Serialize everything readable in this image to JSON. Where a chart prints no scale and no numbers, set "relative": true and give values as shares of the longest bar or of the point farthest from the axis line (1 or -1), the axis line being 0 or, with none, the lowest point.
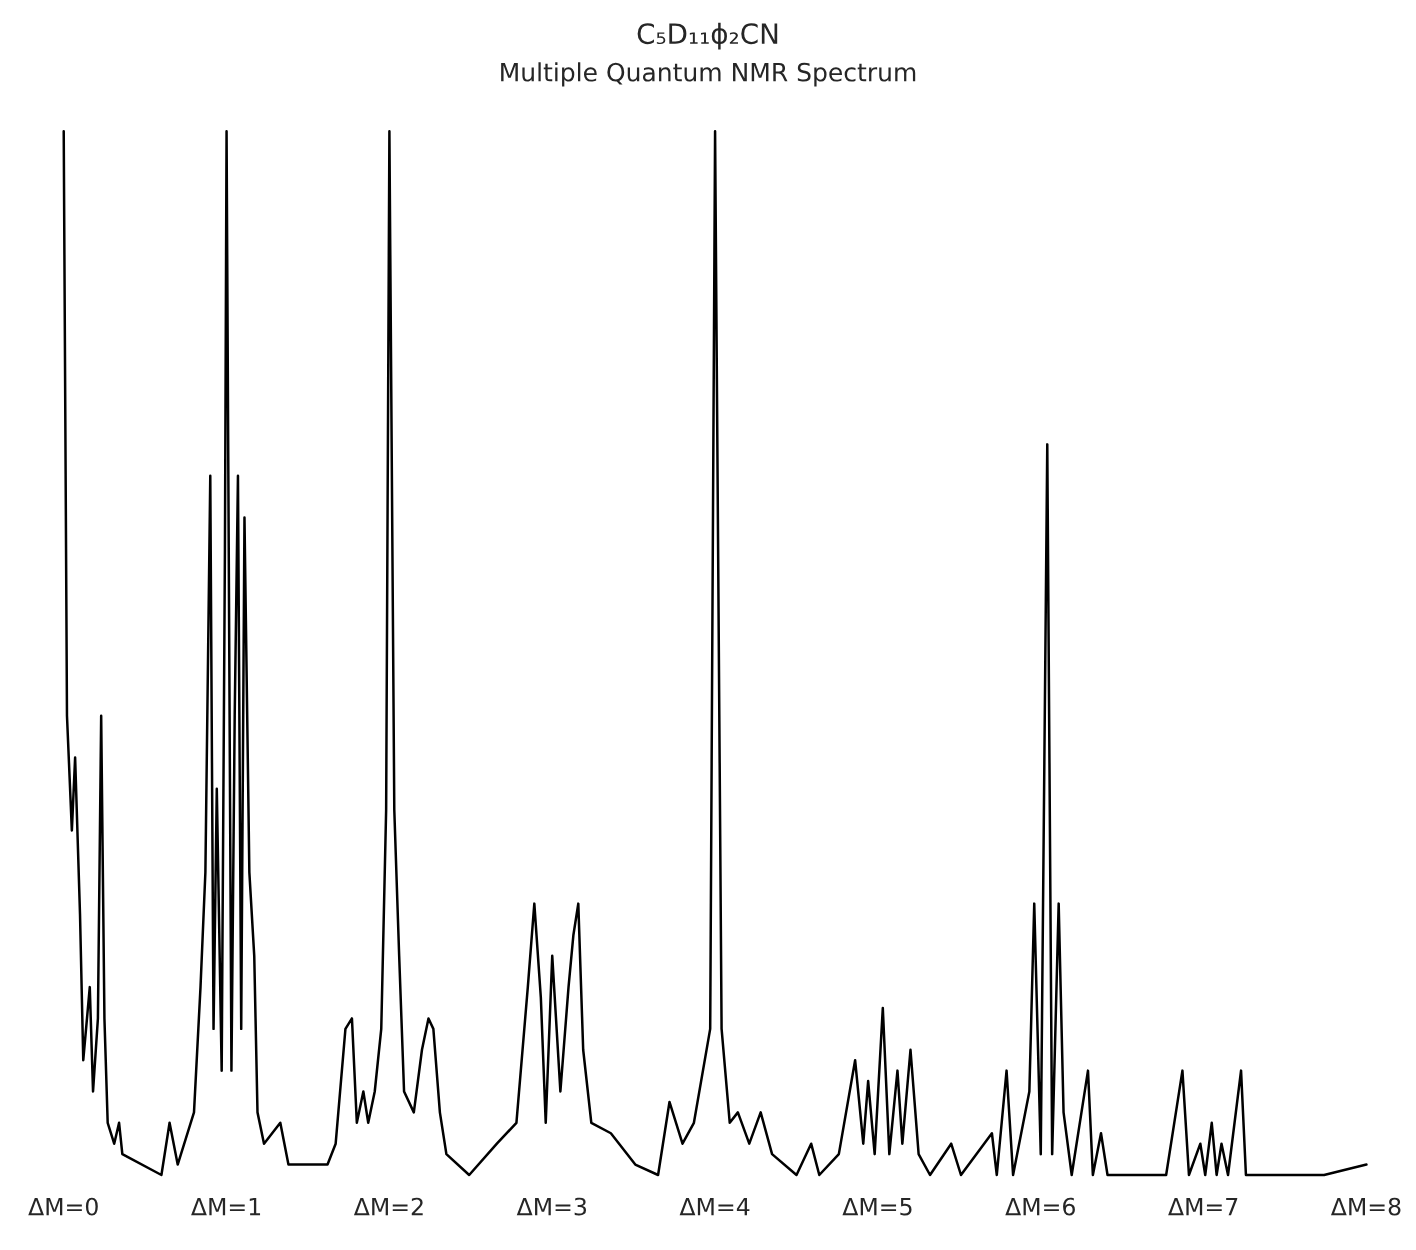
{
  "chart_data": {
    "type": "line",
    "title": "C₅D₁₁ϕ₂CN",
    "subtitle": "Multiple Quantum NMR Spectrum",
    "relative": true,
    "grid": false,
    "legend": false,
    "xlim": [
      0,
      8
    ],
    "xticks": [
      {
        "value": 0,
        "label": "ΔM=0"
      },
      {
        "value": 1,
        "label": "ΔM=1"
      },
      {
        "value": 2,
        "label": "ΔM=2"
      },
      {
        "value": 3,
        "label": "ΔM=3"
      },
      {
        "value": 4,
        "label": "ΔM=4"
      },
      {
        "value": 5,
        "label": "ΔM=5"
      },
      {
        "value": 6,
        "label": "ΔM=6"
      },
      {
        "value": 7,
        "label": "ΔM=7"
      },
      {
        "value": 8,
        "label": "ΔM=8"
      }
    ],
    "series": [
      {
        "color": "#000000",
        "x": [
          0.0,
          0.02,
          0.05,
          0.07,
          0.1,
          0.12,
          0.16,
          0.18,
          0.21,
          0.23,
          0.25,
          0.27,
          0.31,
          0.34,
          0.36,
          0.6,
          0.65,
          0.7,
          0.8,
          0.84,
          0.87,
          0.9,
          0.92,
          0.94,
          0.97,
          0.99,
          1.0,
          1.03,
          1.05,
          1.07,
          1.09,
          1.11,
          1.14,
          1.17,
          1.19,
          1.23,
          1.33,
          1.38,
          1.62,
          1.67,
          1.73,
          1.77,
          1.8,
          1.84,
          1.87,
          1.91,
          1.95,
          1.98,
          2.0,
          2.03,
          2.06,
          2.09,
          2.15,
          2.2,
          2.24,
          2.27,
          2.31,
          2.35,
          2.49,
          2.66,
          2.78,
          2.85,
          2.89,
          2.93,
          2.96,
          3.0,
          3.05,
          3.1,
          3.13,
          3.16,
          3.19,
          3.24,
          3.36,
          3.51,
          3.65,
          3.72,
          3.8,
          3.87,
          3.97,
          4.0,
          4.04,
          4.09,
          4.14,
          4.21,
          4.28,
          4.35,
          4.5,
          4.59,
          4.64,
          4.76,
          4.86,
          4.91,
          4.94,
          4.98,
          5.03,
          5.07,
          5.12,
          5.15,
          5.2,
          5.25,
          5.32,
          5.45,
          5.51,
          5.7,
          5.73,
          5.79,
          5.83,
          5.93,
          5.96,
          6.0,
          6.04,
          6.07,
          6.11,
          6.14,
          6.19,
          6.29,
          6.32,
          6.37,
          6.41,
          6.77,
          6.87,
          6.91,
          6.98,
          7.01,
          7.05,
          7.08,
          7.11,
          7.15,
          7.23,
          7.26,
          7.74,
          8.0
        ],
        "values": [
          1.0,
          0.44,
          0.33,
          0.4,
          0.25,
          0.11,
          0.18,
          0.08,
          0.15,
          0.44,
          0.15,
          0.05,
          0.03,
          0.05,
          0.02,
          0.0,
          0.05,
          0.01,
          0.06,
          0.18,
          0.29,
          0.67,
          0.14,
          0.37,
          0.1,
          0.6,
          1.0,
          0.1,
          0.44,
          0.67,
          0.14,
          0.63,
          0.29,
          0.21,
          0.06,
          0.03,
          0.05,
          0.01,
          0.01,
          0.03,
          0.14,
          0.15,
          0.05,
          0.08,
          0.05,
          0.08,
          0.14,
          0.35,
          1.0,
          0.35,
          0.21,
          0.08,
          0.06,
          0.12,
          0.15,
          0.14,
          0.06,
          0.02,
          0.0,
          0.03,
          0.05,
          0.18,
          0.26,
          0.17,
          0.05,
          0.21,
          0.08,
          0.18,
          0.23,
          0.26,
          0.12,
          0.05,
          0.04,
          0.01,
          0.0,
          0.07,
          0.03,
          0.05,
          0.14,
          1.0,
          0.14,
          0.05,
          0.06,
          0.03,
          0.06,
          0.02,
          0.0,
          0.03,
          0.0,
          0.02,
          0.11,
          0.03,
          0.09,
          0.02,
          0.16,
          0.02,
          0.1,
          0.03,
          0.12,
          0.02,
          0.0,
          0.03,
          0.0,
          0.04,
          0.0,
          0.1,
          0.0,
          0.08,
          0.26,
          0.02,
          0.7,
          0.02,
          0.26,
          0.06,
          0.0,
          0.1,
          0.0,
          0.04,
          0.0,
          0.0,
          0.1,
          0.0,
          0.03,
          0.0,
          0.05,
          0.0,
          0.03,
          0.0,
          0.1,
          0.0,
          0.0,
          0.01
        ]
      }
    ]
  }
}
